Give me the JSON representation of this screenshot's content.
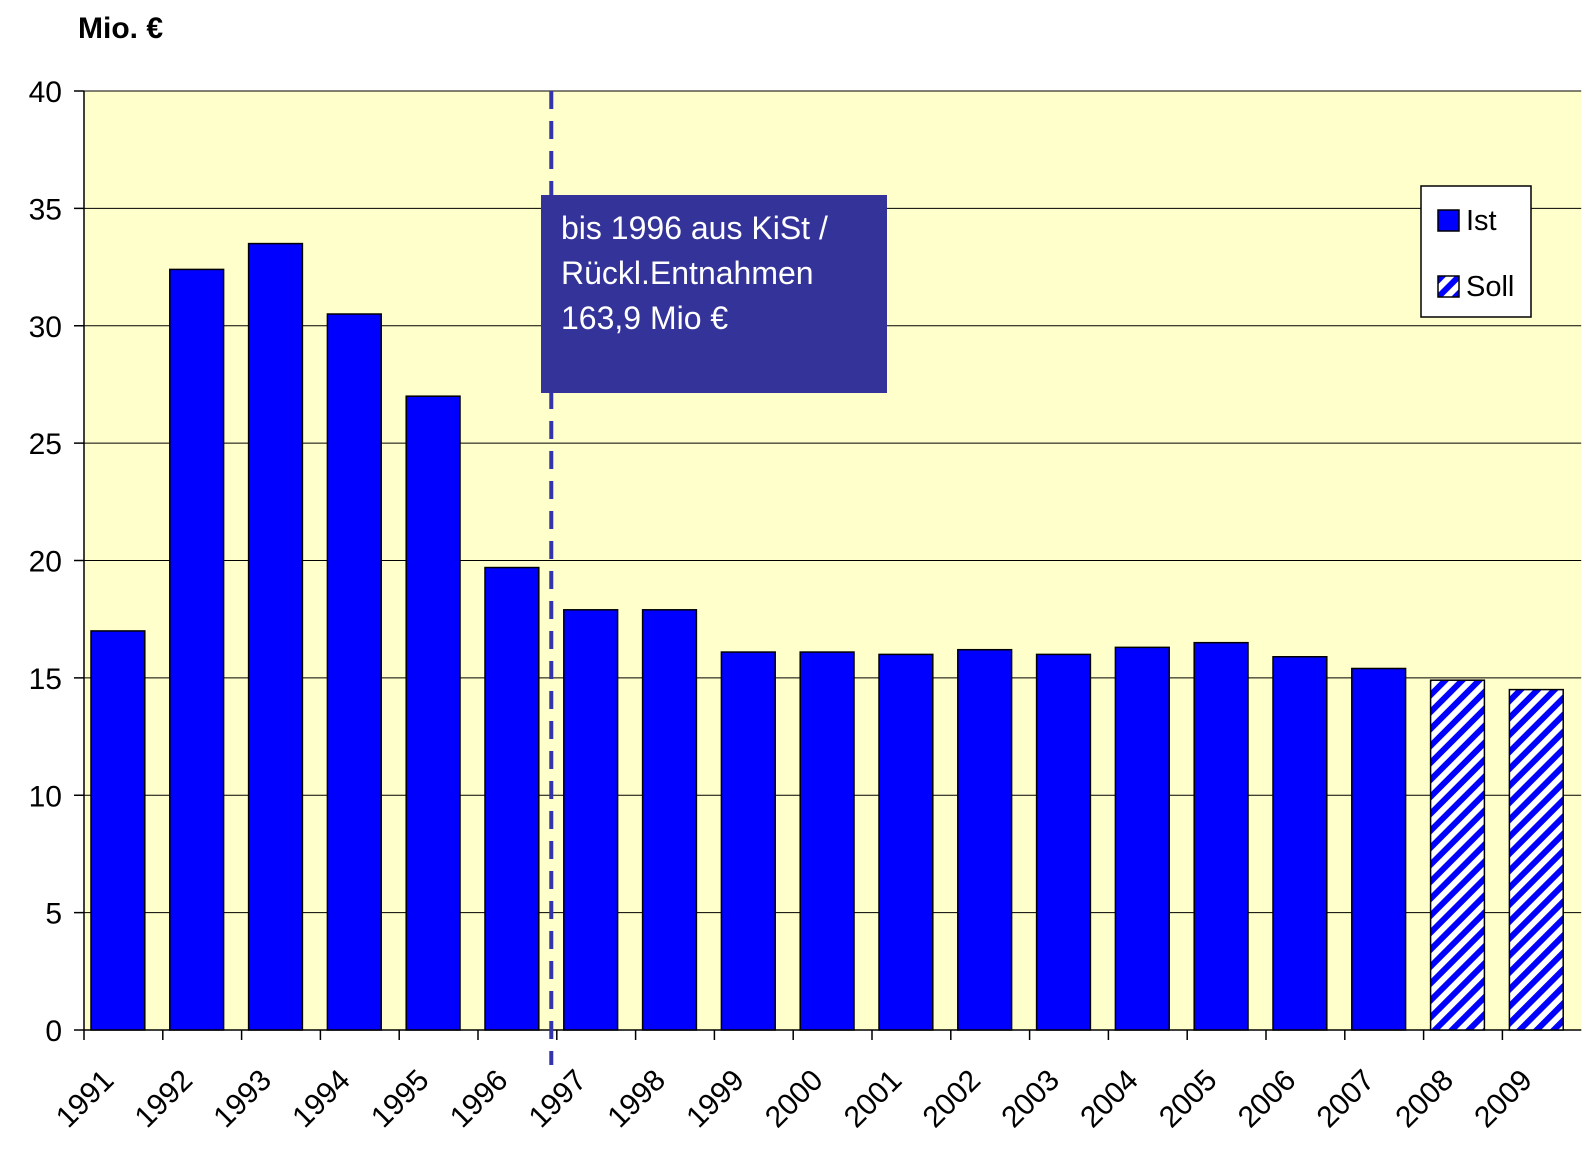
{
  "chart_data": {
    "type": "bar",
    "y_label": "Mio. €",
    "categories": [
      "1991",
      "1992",
      "1993",
      "1994",
      "1995",
      "1996",
      "1997",
      "1998",
      "1999",
      "2000",
      "2001",
      "2002",
      "2003",
      "2004",
      "2005",
      "2006",
      "2007",
      "2008",
      "2009"
    ],
    "series": [
      {
        "name": "Ist",
        "color": "#0000ff",
        "hatch": false,
        "values": [
          17.0,
          32.4,
          33.5,
          30.5,
          27.0,
          19.7,
          17.9,
          17.9,
          16.1,
          16.1,
          16.0,
          16.2,
          16.0,
          16.3,
          16.5,
          15.9,
          15.4,
          null,
          null
        ]
      },
      {
        "name": "Soll",
        "color": "#0000ff",
        "hatch": true,
        "values": [
          null,
          null,
          null,
          null,
          null,
          null,
          null,
          null,
          null,
          null,
          null,
          null,
          null,
          null,
          null,
          null,
          null,
          14.9,
          14.5
        ]
      }
    ],
    "annotation": [
      "bis 1996 aus KiSt /",
      "Rückl.Entnahmen",
      "163,9 Mio €"
    ],
    "ylim": [
      0,
      40
    ],
    "yticks": [
      0,
      5,
      10,
      15,
      20,
      25,
      30,
      35,
      40
    ],
    "grid": true,
    "background": "#ffffcc"
  }
}
